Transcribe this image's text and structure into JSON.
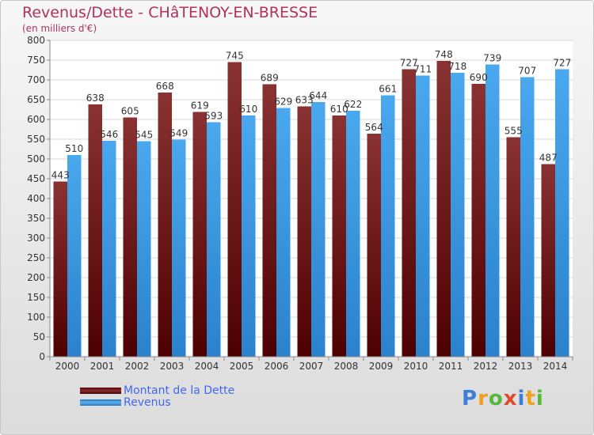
{
  "chart_data": {
    "type": "bar",
    "title": "Revenus/Dette - CHâTENOY-EN-BRESSE",
    "subtitle": "(en milliers d'€)",
    "categories": [
      "2000",
      "2001",
      "2002",
      "2003",
      "2004",
      "2005",
      "2006",
      "2007",
      "2008",
      "2009",
      "2010",
      "2011",
      "2012",
      "2013",
      "2014"
    ],
    "series": [
      {
        "name": "Montant de la Dette",
        "color": "#7a1e1e",
        "values": [
          443,
          638,
          605,
          668,
          619,
          745,
          689,
          633,
          610,
          564,
          727,
          748,
          690,
          555,
          487
        ]
      },
      {
        "name": "Revenus",
        "color": "#3d9be5",
        "values": [
          510,
          546,
          545,
          549,
          593,
          610,
          629,
          644,
          622,
          661,
          711,
          718,
          739,
          707,
          727
        ]
      }
    ],
    "ylim": [
      0,
      800
    ],
    "yticks": [
      0,
      50,
      100,
      150,
      200,
      250,
      300,
      350,
      400,
      450,
      500,
      550,
      600,
      650,
      700,
      750,
      800
    ],
    "grid": true,
    "legend": "bottom-left"
  },
  "branding": {
    "logo_letters": [
      "P",
      "r",
      "o",
      "x",
      "i",
      "t",
      "i"
    ],
    "logo_colors": [
      "#3d7fd8",
      "#f0a020",
      "#56b838",
      "#e04a2a",
      "#3d7fd8",
      "#f0a020",
      "#56b838"
    ]
  }
}
